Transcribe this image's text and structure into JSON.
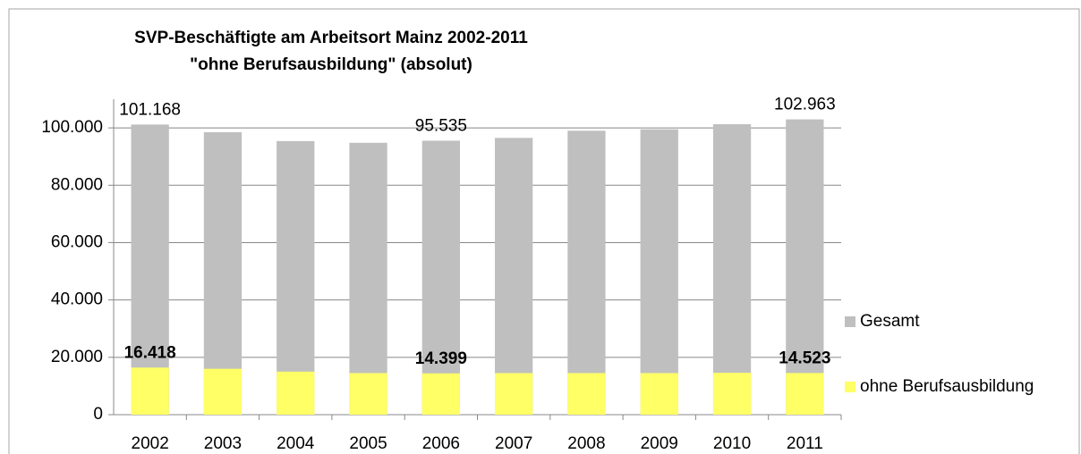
{
  "chart_data": {
    "type": "bar",
    "title": "SVP-Beschäftigte am Arbeitsort Mainz 2002-2011",
    "subtitle": "\"ohne Berufsausbildung\" (absolut)",
    "categories": [
      "2002",
      "2003",
      "2004",
      "2005",
      "2006",
      "2007",
      "2008",
      "2009",
      "2010",
      "2011"
    ],
    "overlap": true,
    "series": [
      {
        "name": "Gesamt",
        "color": "#bfbfbf",
        "values": [
          101168,
          98500,
          95400,
          94800,
          95535,
          96500,
          99000,
          99500,
          101300,
          102963
        ],
        "value_labels": [
          "101.168",
          null,
          null,
          null,
          "95.535",
          null,
          null,
          null,
          null,
          "102.963"
        ]
      },
      {
        "name": "ohne Berufsausbildung",
        "color": "#ffff66",
        "values": [
          16418,
          16000,
          15000,
          14500,
          14399,
          14500,
          14500,
          14500,
          14600,
          14523
        ],
        "value_labels": [
          "16.418",
          null,
          null,
          null,
          "14.399",
          null,
          null,
          null,
          null,
          "14.523"
        ]
      }
    ],
    "ylim": [
      0,
      110000
    ],
    "yticks": [
      0,
      {
        "value": 20000,
        "label": "20.000"
      },
      {
        "value": 40000,
        "label": "40.000"
      },
      {
        "value": 60000,
        "label": "60.000"
      },
      {
        "value": 80000,
        "label": "80.000"
      },
      {
        "value": 100000,
        "label": "100.000"
      }
    ],
    "grid": true,
    "legend": "right"
  }
}
